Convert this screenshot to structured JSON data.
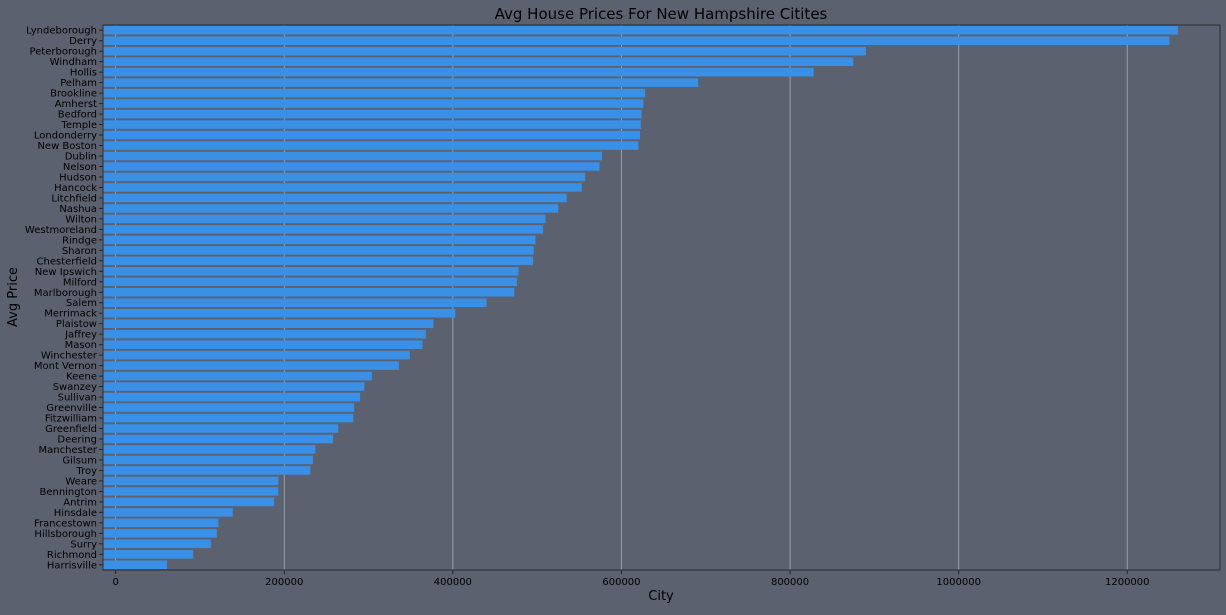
{
  "chart_data": {
    "type": "bar",
    "orientation": "horizontal",
    "title": "Avg House Prices For New Hampshire Citites",
    "xlabel": "City",
    "ylabel": "Avg Price",
    "xlim": [
      -15000,
      1310000
    ],
    "xticks": [
      0,
      200000,
      400000,
      600000,
      800000,
      1000000,
      1200000
    ],
    "grid": "vertical",
    "bar_color": "#3a8fe6",
    "background_color": "#5b616e",
    "grid_color": "#9aa0aa",
    "categories": [
      "Lyndeborough",
      "Derry",
      "Peterborough",
      "Windham",
      "Hollis",
      "Pelham",
      "Brookline",
      "Amherst",
      "Bedford",
      "Temple",
      "Londonderry",
      "New Boston",
      "Dublin",
      "Nelson",
      "Hudson",
      "Hancock",
      "Litchfield",
      "Nashua",
      "Wilton",
      "Westmoreland",
      "Rindge",
      "Sharon",
      "Chesterfield",
      "New Ipswich",
      "Milford",
      "Marlborough",
      "Salem",
      "Merrimack",
      "Plaistow",
      "Jaffrey",
      "Mason",
      "Winchester",
      "Mont Vernon",
      "Keene",
      "Swanzey",
      "Sullivan",
      "Greenville",
      "Fitzwilliam",
      "Greenfield",
      "Deering",
      "Manchester",
      "Gilsum",
      "Troy",
      "Weare",
      "Bennington",
      "Antrim",
      "Hinsdale",
      "Francestown",
      "Hillsborough",
      "Surry",
      "Richmond",
      "Harrisville"
    ],
    "values": [
      1260000,
      1250000,
      890000,
      875000,
      828000,
      691000,
      628000,
      626000,
      624000,
      623000,
      622000,
      620000,
      577000,
      574000,
      557000,
      553000,
      535000,
      525000,
      510000,
      507000,
      498000,
      496000,
      495000,
      478000,
      476000,
      473000,
      440000,
      403000,
      377000,
      368000,
      364000,
      349000,
      336000,
      304000,
      295000,
      290000,
      283000,
      282000,
      264000,
      258000,
      237000,
      234000,
      231000,
      193000,
      193000,
      188000,
      139000,
      122000,
      120000,
      113000,
      92000,
      61000
    ]
  }
}
